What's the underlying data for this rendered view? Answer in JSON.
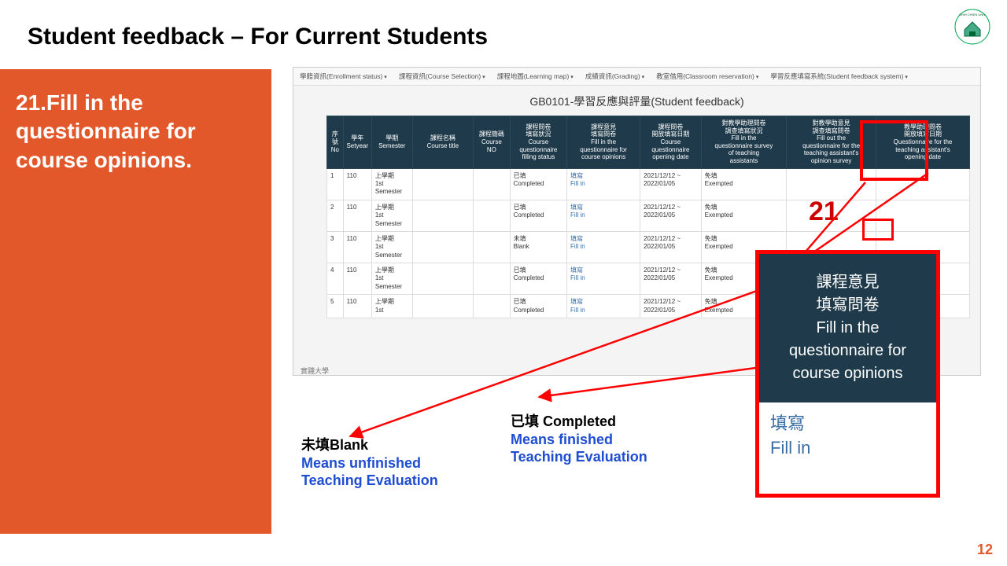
{
  "title": "Student feedback – For Current Students",
  "orange": {
    "text": "21.Fill in the questionnaire for course opinions."
  },
  "nav": {
    "items": [
      "學籍資訊(Enrollment status)",
      "課程資訊(Course Selection)",
      "課程地圖(Learning map)",
      "成績資訊(Grading)",
      "教室借用(Classroom reservation)",
      "學習反應填寫系統(Student feedback system)"
    ]
  },
  "page_subtitle": "GB0101-學習反應與評量(Student feedback)",
  "headers": {
    "no": "序\n號\nNo",
    "year": "學年\nSetyear",
    "sem": "學期\nSemester",
    "title": "課程名稱\nCourse title",
    "cno": "課程簡碼\nCourse\nNO",
    "f1": "課程問卷\n填寫狀況\nCourse\nquestionnaire\nfilling status",
    "f2": "課程意見\n填寫問卷\nFill in the\nquestionnaire for\ncourse opinions",
    "date": "課程問卷\n開放填寫日期\nCourse\nquestionnaire\nopening date",
    "f3": "對教學助理問卷\n調查填寫狀況\nFill in the\nquestionnaire survey\nof teaching\nassistants",
    "f4": "對教學助意見\n調查填寫問卷\nFill out the\nquestionnaire for the\nteaching assistant's\nopinion survey",
    "f5": "教學助理問卷\n開放填寫日期\nQuestionnaire for the\nteaching assistant's\nopening date"
  },
  "rows": [
    {
      "no": "1",
      "year": "110",
      "sem": "上學期\n1st\nSemester",
      "title": "",
      "cno": "",
      "f1": "已填\nCompleted",
      "f2": "填寫\nFill in",
      "date": "2021/12/12 ~\n2022/01/05",
      "f3": "免填\nExempted",
      "f4": "",
      "f5": ""
    },
    {
      "no": "2",
      "year": "110",
      "sem": "上學期\n1st\nSemester",
      "title": "",
      "cno": "",
      "f1": "已填\nCompleted",
      "f2": "填寫\nFill in",
      "date": "2021/12/12 ~\n2022/01/05",
      "f3": "免填\nExempted",
      "f4": "",
      "f5": ""
    },
    {
      "no": "3",
      "year": "110",
      "sem": "上學期\n1st\nSemester",
      "title": "",
      "cno": "",
      "f1": "未填\nBlank",
      "f2": "填寫\nFill in",
      "date": "2021/12/12 ~\n2022/01/05",
      "f3": "免填\nExempted",
      "f4": "",
      "f5": ""
    },
    {
      "no": "4",
      "year": "110",
      "sem": "上學期\n1st\nSemester",
      "title": "",
      "cno": "",
      "f1": "已填\nCompleted",
      "f2": "填寫\nFill in",
      "date": "2021/12/12 ~\n2022/01/05",
      "f3": "免填\nExempted",
      "f4": "",
      "f5": ""
    },
    {
      "no": "5",
      "year": "110",
      "sem": "上學期\n1st",
      "title": "",
      "cno": "",
      "f1": "已填\nCompleted",
      "f2": "填寫\nFill in",
      "date": "2021/12/12 ~\n2022/01/05",
      "f3": "免填\nExempted",
      "f4": "",
      "f5": ""
    }
  ],
  "footer_univ": "實踐大學",
  "big21": "21",
  "anno": {
    "blank": {
      "title": "未填Blank",
      "line1": "Means unfinished",
      "line2": "Teaching Evaluation"
    },
    "completed": {
      "title": "已填 Completed",
      "line1": "Means finished",
      "line2": "Teaching Evaluation"
    }
  },
  "callout": {
    "head_line1": "課程意見",
    "head_line2": "填寫問卷",
    "head_line3": "Fill in the",
    "head_line4": "questionnaire for",
    "head_line5": "course opinions",
    "body_line1": "填寫",
    "body_line2": "Fill in"
  },
  "page_num": "12"
}
